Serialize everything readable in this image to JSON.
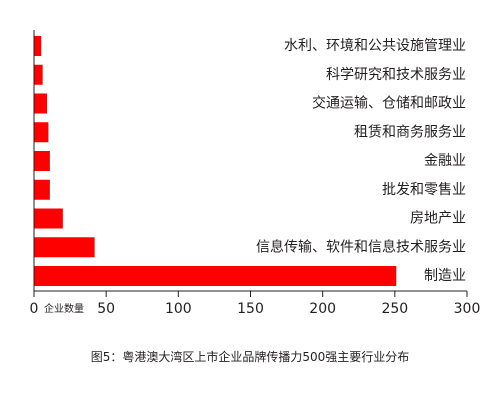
{
  "figure_caption": "图5：粤港澳大湾区上市企业品牌传播力500强主要行业分布",
  "colors": {
    "bar": "#ff0000",
    "axis": "#231f20",
    "text": "#231f20"
  },
  "chart_data": {
    "type": "bar",
    "orientation": "horizontal",
    "title": "",
    "xlabel": "企业数量",
    "ylabel": "",
    "xlim": [
      0,
      300
    ],
    "xticks": [
      0,
      50,
      100,
      150,
      200,
      250,
      300
    ],
    "grid": false,
    "legend": "none",
    "categories": [
      "水利、环境和公共设施管理业",
      "科学研究和技术服务业",
      "交通运输、仓储和邮政业",
      "租赁和商务服务业",
      "金融业",
      "批发和零售业",
      "房地产业",
      "信息传输、软件和信息技术服务业",
      "制造业"
    ],
    "values": [
      5,
      6,
      9,
      10,
      11,
      11,
      20,
      42,
      251
    ]
  }
}
